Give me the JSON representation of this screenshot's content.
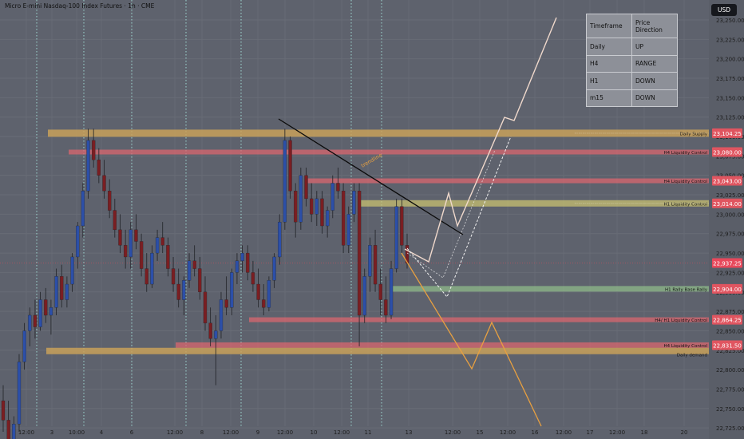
{
  "header": {
    "title": "Micro E-mini Nasdaq-100 Index Futures · 1h · CME",
    "currency": "USD"
  },
  "table": {
    "head": [
      "Timeframe",
      "Price Direction"
    ],
    "rows": [
      [
        "Daily",
        "UP"
      ],
      [
        "H4",
        "RANGE"
      ],
      [
        "H1",
        "DOWN"
      ],
      [
        "m15",
        "DOWN"
      ]
    ]
  },
  "chart_data": {
    "type": "candlestick",
    "ylim": [
      22680,
      23265
    ],
    "price_ticks": [
      "23,250.00",
      "23,225.00",
      "23,200.00",
      "23,175.00",
      "23,150.00",
      "23,125.00",
      "23,100.00",
      "23,075.00",
      "23,050.00",
      "23,025.00",
      "23,000.00",
      "22,975.00",
      "22,950.00",
      "22,925.00",
      "22,900.00",
      "22,875.00",
      "22,850.00",
      "22,825.00",
      "22,800.00",
      "22,775.00",
      "22,750.00",
      "22,725.00",
      "22,700.00"
    ],
    "time_ticks": [
      "12:00",
      "3",
      "10:00",
      "4",
      "6",
      "12:00",
      "8",
      "12:00",
      "9",
      "12:00",
      "10",
      "12:00",
      "11",
      "13",
      "12:00",
      "15",
      "12:00",
      "16",
      "12:00",
      "17",
      "12:00",
      "18",
      "20"
    ],
    "last_price": {
      "label": "22,937.25",
      "value": 22937.25,
      "color": "#e8485b"
    },
    "colors": {
      "up": "#2c4fa8",
      "down": "#7a1e22",
      "zone_orange": "#c8a15a",
      "zone_red": "#d9676f",
      "zone_green": "#8fb98a",
      "zone_yellow": "#c8c070",
      "badge_red": "#e05560",
      "bullish_path": "#f0d9cc",
      "bearish_path": "#e8a040",
      "dashed_path": "#f2f2f2"
    },
    "zones": [
      {
        "name": "Daily Supply",
        "value": 23104.25,
        "price_label": "23,104.25",
        "type": "orange"
      },
      {
        "name": "H4 Liquidity Control",
        "value": 23080.0,
        "price_label": "23,080.00",
        "type": "red"
      },
      {
        "name": "H4 Liquidity Control",
        "value": 23043.0,
        "price_label": "23,043.00",
        "type": "red"
      },
      {
        "name": "H1 Liquidity Control",
        "value": 23014.0,
        "price_label": "23,014.00",
        "type": "yellow"
      },
      {
        "name": "H1 Rally Base Rally",
        "value": 22904.0,
        "price_label": "22,904.00",
        "type": "green"
      },
      {
        "name": "H4/ H1 Liquidity Control",
        "value": 22864.25,
        "price_label": "22,864.25",
        "type": "red"
      },
      {
        "name": "H4 Liquidity Control",
        "value": 22831.5,
        "price_label": "22,831.50",
        "type": "red"
      },
      {
        "name": "Daily demand",
        "value": 22824.0,
        "price_label": "",
        "type": "orange"
      }
    ],
    "annotations": {
      "trendline_label": "trendline"
    },
    "candles": [
      [
        22760,
        22780,
        22720,
        22735
      ],
      [
        22735,
        22760,
        22690,
        22700
      ],
      [
        22700,
        22740,
        22690,
        22730
      ],
      [
        22730,
        22820,
        22720,
        22810
      ],
      [
        22810,
        22860,
        22800,
        22850
      ],
      [
        22850,
        22880,
        22830,
        22870
      ],
      [
        22870,
        22890,
        22840,
        22855
      ],
      [
        22855,
        22900,
        22850,
        22890
      ],
      [
        22890,
        22905,
        22860,
        22870
      ],
      [
        22870,
        22890,
        22845,
        22880
      ],
      [
        22880,
        22930,
        22870,
        22920
      ],
      [
        22920,
        22935,
        22880,
        22890
      ],
      [
        22890,
        22920,
        22880,
        22910
      ],
      [
        22910,
        22950,
        22900,
        22945
      ],
      [
        22945,
        22990,
        22930,
        22985
      ],
      [
        22985,
        23040,
        22970,
        23030
      ],
      [
        23030,
        23110,
        23020,
        23095
      ],
      [
        23095,
        23110,
        23060,
        23070
      ],
      [
        23070,
        23085,
        23040,
        23050
      ],
      [
        23050,
        23070,
        23020,
        23030
      ],
      [
        23030,
        23045,
        22995,
        23005
      ],
      [
        23005,
        23020,
        22970,
        22980
      ],
      [
        22980,
        23000,
        22950,
        22960
      ],
      [
        22960,
        22980,
        22930,
        22945
      ],
      [
        22945,
        22990,
        22930,
        22980
      ],
      [
        22980,
        23000,
        22955,
        22965
      ],
      [
        22965,
        22975,
        22920,
        22930
      ],
      [
        22930,
        22950,
        22900,
        22910
      ],
      [
        22910,
        22960,
        22905,
        22950
      ],
      [
        22950,
        22980,
        22940,
        22970
      ],
      [
        22970,
        22990,
        22950,
        22960
      ],
      [
        22960,
        22970,
        22920,
        22930
      ],
      [
        22930,
        22945,
        22900,
        22910
      ],
      [
        22910,
        22930,
        22880,
        22890
      ],
      [
        22890,
        22920,
        22870,
        22915
      ],
      [
        22915,
        22950,
        22905,
        22940
      ],
      [
        22940,
        22960,
        22920,
        22930
      ],
      [
        22930,
        22945,
        22890,
        22900
      ],
      [
        22900,
        22920,
        22850,
        22860
      ],
      [
        22860,
        22880,
        22830,
        22840
      ],
      [
        22840,
        22870,
        22780,
        22850
      ],
      [
        22850,
        22900,
        22840,
        22890
      ],
      [
        22890,
        22920,
        22870,
        22880
      ],
      [
        22880,
        22930,
        22870,
        22925
      ],
      [
        22925,
        22950,
        22910,
        22940
      ],
      [
        22940,
        22960,
        22925,
        22950
      ],
      [
        22950,
        22960,
        22915,
        22925
      ],
      [
        22925,
        22940,
        22900,
        22910
      ],
      [
        22910,
        22930,
        22880,
        22890
      ],
      [
        22890,
        22910,
        22870,
        22880
      ],
      [
        22880,
        22920,
        22875,
        22915
      ],
      [
        22915,
        22950,
        22905,
        22945
      ],
      [
        22945,
        23000,
        22935,
        22990
      ],
      [
        22990,
        23110,
        22980,
        23095
      ],
      [
        23095,
        23100,
        23020,
        23030
      ],
      [
        23030,
        23040,
        22970,
        22990
      ],
      [
        22990,
        23060,
        22980,
        23050
      ],
      [
        23050,
        23060,
        23010,
        23020
      ],
      [
        23020,
        23040,
        22990,
        23000
      ],
      [
        23000,
        23030,
        22985,
        23020
      ],
      [
        23020,
        23030,
        22975,
        22985
      ],
      [
        22985,
        23010,
        22970,
        23005
      ],
      [
        23005,
        23050,
        22995,
        23040
      ],
      [
        23040,
        23060,
        23020,
        23030
      ],
      [
        23030,
        23040,
        22950,
        22960
      ],
      [
        22960,
        23010,
        22950,
        23000
      ],
      [
        23000,
        23040,
        22990,
        23030
      ],
      [
        23030,
        23040,
        22830,
        22870
      ],
      [
        22870,
        22930,
        22860,
        22920
      ],
      [
        22920,
        22970,
        22900,
        22960
      ],
      [
        22960,
        22980,
        22900,
        22910
      ],
      [
        22910,
        22930,
        22870,
        22890
      ],
      [
        22890,
        22920,
        22860,
        22870
      ],
      [
        22870,
        22940,
        22865,
        22930
      ],
      [
        22930,
        23020,
        22925,
        23010
      ],
      [
        23010,
        23020,
        22950,
        22960
      ],
      [
        22960,
        22975,
        22930,
        22937
      ]
    ]
  }
}
